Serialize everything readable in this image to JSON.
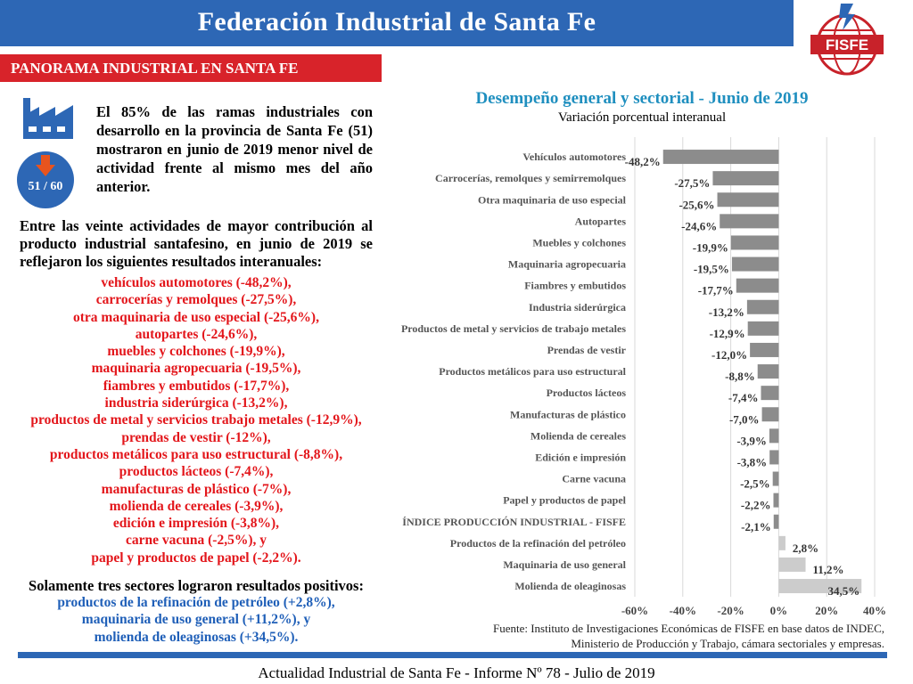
{
  "header": {
    "title": "Federación Industrial de Santa Fe",
    "logo_text": "FISFE"
  },
  "section": {
    "label": "PANORAMA INDUSTRIAL EN SANTA FE"
  },
  "badge": {
    "ratio": "51 / 60"
  },
  "intro": {
    "text": "El 85% de las ramas industriales con desarrollo en la provincia de Santa Fe (51) mostraron en junio de 2019 menor nivel de actividad frente al mismo mes del año anterior."
  },
  "paragraph": {
    "text": "Entre las veinte actividades de mayor contribución al producto industrial santafesino, en junio de 2019 se reflejaron los siguientes resultados interanuales:"
  },
  "negative_list": [
    "vehículos automotores (-48,2%),",
    "carrocerías y remolques (-27,5%),",
    "otra maquinaria de uso especial (-25,6%),",
    "autopartes (-24,6%),",
    "muebles y colchones (-19,9%),",
    "maquinaria agropecuaria (-19,5%),",
    "fiambres y embutidos (-17,7%),",
    "industria siderúrgica (-13,2%),",
    "productos de metal y servicios trabajo metales (-12,9%),",
    "prendas de vestir (-12%),",
    "productos metálicos para uso estructural (-8,8%),",
    "productos lácteos (-7,4%),",
    "manufacturas de plástico (-7%),",
    "molienda de cereales (-3,9%),",
    "edición e impresión (-3,8%),",
    "carne vacuna (-2,5%), y",
    "papel y productos de papel (-2,2%)."
  ],
  "positive": {
    "title": "Solamente tres sectores lograron resultados positivos:",
    "items": [
      "productos de la refinación de petróleo (+2,8%),",
      "maquinaria de uso general (+11,2%), y",
      "molienda de oleaginosas (+34,5%)."
    ]
  },
  "chart_data": {
    "type": "bar",
    "orientation": "horizontal",
    "title": "Desempeño general y sectorial - Junio de 2019",
    "subtitle": "Variación porcentual interanual",
    "categories": [
      "Vehículos automotores",
      "Carrocerías, remolques y semirremolques",
      "Otra maquinaria de uso especial",
      "Autopartes",
      "Muebles y colchones",
      "Maquinaria agropecuaria",
      "Fiambres y embutidos",
      "Industria siderúrgica",
      "Productos de metal y servicios de trabajo metales",
      "Prendas de vestir",
      "Productos metálicos para uso estructural",
      "Productos lácteos",
      "Manufacturas de plástico",
      "Molienda de cereales",
      "Edición e impresión",
      "Carne vacuna",
      "Papel y productos de papel",
      "ÍNDICE PRODUCCIÓN INDUSTRIAL - FISFE",
      "Productos de la refinación del petróleo",
      "Maquinaria de uso general",
      "Molienda de oleaginosas"
    ],
    "values": [
      -48.2,
      -27.5,
      -25.6,
      -24.6,
      -19.9,
      -19.5,
      -17.7,
      -13.2,
      -12.9,
      -12.0,
      -8.8,
      -7.4,
      -7.0,
      -3.9,
      -3.8,
      -2.5,
      -2.2,
      -2.1,
      2.8,
      11.2,
      34.5
    ],
    "value_labels": [
      "-48,2%",
      "-27,5%",
      "-25,6%",
      "-24,6%",
      "-19,9%",
      "-19,5%",
      "-17,7%",
      "-13,2%",
      "-12,9%",
      "-12,0%",
      "-8,8%",
      "-7,4%",
      "-7,0%",
      "-3,9%",
      "-3,8%",
      "-2,5%",
      "-2,2%",
      "-2,1%",
      "2,8%",
      "11,2%",
      "34,5%"
    ],
    "xticks": [
      -60,
      -40,
      -20,
      0,
      20,
      40
    ],
    "xtick_labels": [
      "-60%",
      "-40%",
      "-20%",
      "0%",
      "20%",
      "40%"
    ],
    "xlim": [
      -60,
      40
    ],
    "grid": "vertical",
    "colors": {
      "negative": "#8c8c8c",
      "positive": "#cccccc",
      "category_text": "#555555",
      "value_text": "#333333"
    }
  },
  "source": {
    "line1": "Fuente: Instituto de Investigaciones Económicas de FISFE en base datos de INDEC,",
    "line2": "Ministerio de Producción y Trabajo, cámara sectoriales y empresas."
  },
  "footer": {
    "text": "Actualidad Industrial de Santa Fe - Informe Nº 78 - Julio de 2019"
  }
}
